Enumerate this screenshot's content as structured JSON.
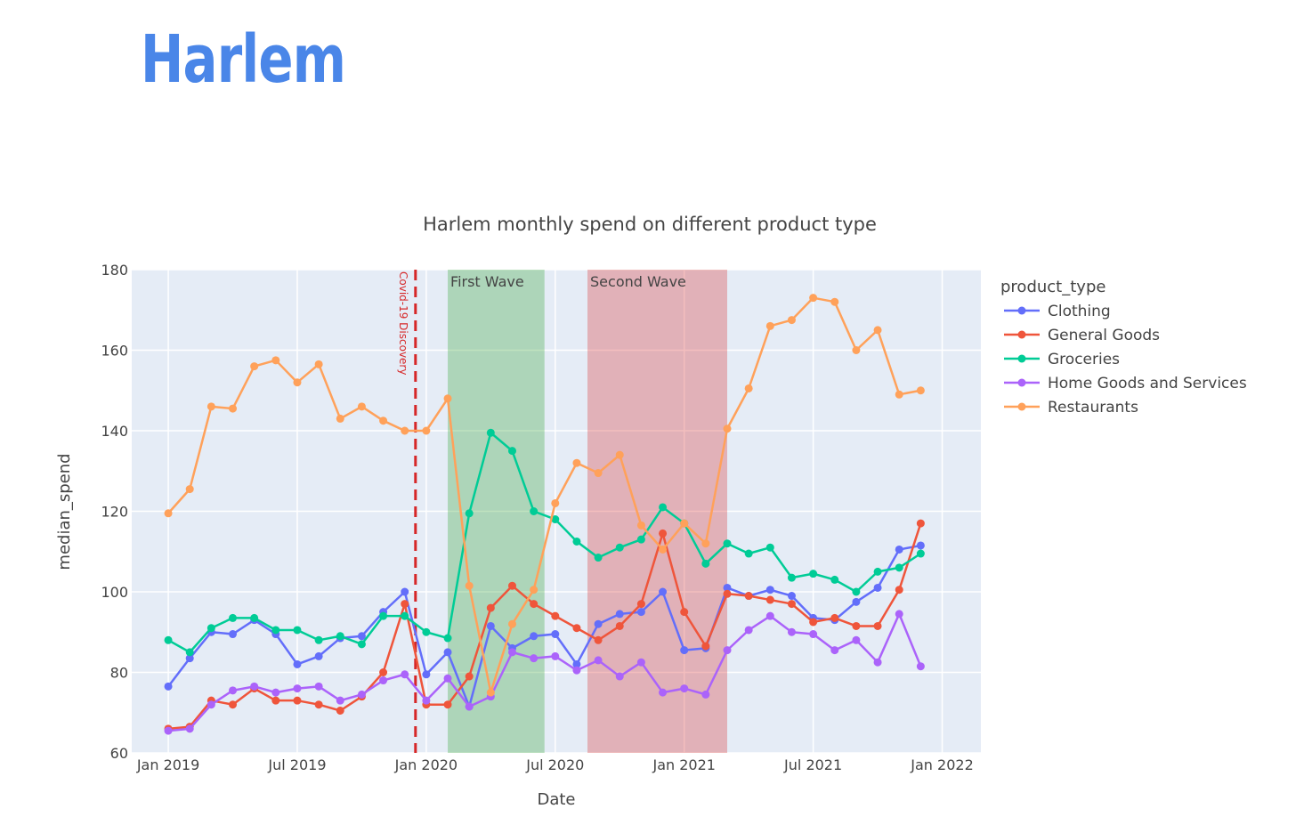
{
  "page": {
    "heading": "Harlem"
  },
  "colors": {
    "heading": "#4a86e8",
    "plot_bg": "#e5ecf6",
    "grid": "#ffffff",
    "text": "#444444",
    "first_wave": "#2ca02c",
    "second_wave": "#d62728",
    "covid_line": "#d62728"
  },
  "chart_data": {
    "type": "line",
    "title": "Harlem monthly spend on different product type",
    "xlabel": "Date",
    "ylabel": "median_spend",
    "ylim": [
      60,
      180
    ],
    "y_ticks": [
      60,
      80,
      100,
      120,
      140,
      160,
      180
    ],
    "x_range_months": [
      -1.7,
      37.8
    ],
    "x_ticks": [
      {
        "label": "Jan 2019",
        "month": 0
      },
      {
        "label": "Jul 2019",
        "month": 6
      },
      {
        "label": "Jan 2020",
        "month": 12
      },
      {
        "label": "Jul 2020",
        "month": 18
      },
      {
        "label": "Jan 2021",
        "month": 24
      },
      {
        "label": "Jul 2021",
        "month": 30
      },
      {
        "label": "Jan 2022",
        "month": 36
      }
    ],
    "x_months": [
      0,
      1,
      2,
      3,
      4,
      5,
      6,
      7,
      8,
      9,
      10,
      11,
      12,
      13,
      14,
      15,
      16,
      17,
      18,
      19,
      20,
      21,
      22,
      23,
      24,
      25,
      26,
      27,
      28,
      29,
      30,
      31,
      32,
      33,
      34,
      35
    ],
    "legend_title": "product_type",
    "series": [
      {
        "name": "Clothing",
        "color": "#636efa",
        "values": [
          76.5,
          83.5,
          90,
          89.5,
          93,
          89.5,
          82,
          84,
          88.5,
          89,
          95,
          100,
          79.5,
          85,
          71.5,
          91.5,
          86,
          89,
          89.5,
          82,
          92,
          94.5,
          95,
          100,
          85.5,
          86,
          101,
          99,
          100.5,
          99,
          93.5,
          93,
          97.5,
          101,
          110.5,
          111.5
        ]
      },
      {
        "name": "General Goods",
        "color": "#ef553b",
        "values": [
          66,
          66.5,
          73,
          72,
          76,
          73,
          73,
          72,
          70.5,
          74,
          80,
          97,
          72,
          72,
          79,
          96,
          101.5,
          97,
          94,
          91,
          88,
          91.5,
          97,
          114.5,
          95,
          86.5,
          99.5,
          99,
          98,
          97,
          92.5,
          93.5,
          91.5,
          91.5,
          100.5,
          117
        ]
      },
      {
        "name": "Groceries",
        "color": "#00cc96",
        "values": [
          88,
          85,
          91,
          93.5,
          93.5,
          90.5,
          90.5,
          88,
          89,
          87,
          94,
          94,
          90,
          88.5,
          119.5,
          139.5,
          135,
          120,
          118,
          112.5,
          108.5,
          111,
          113,
          121,
          117,
          107,
          112,
          109.5,
          111,
          103.5,
          104.5,
          103,
          100,
          105,
          106,
          109.5
        ]
      },
      {
        "name": "Home Goods and Services",
        "color": "#ab63fa",
        "values": [
          65.5,
          66,
          72,
          75.5,
          76.5,
          75,
          76,
          76.5,
          73,
          74.5,
          78,
          79.5,
          73,
          78.5,
          71.5,
          74,
          85,
          83.5,
          84,
          80.5,
          83,
          79,
          82.5,
          75,
          76,
          74.5,
          85.5,
          90.5,
          94,
          90,
          89.5,
          85.5,
          88,
          82.5,
          94.5,
          81.5
        ]
      },
      {
        "name": "Restaurants",
        "color": "#ffa15a",
        "values": [
          119.5,
          125.5,
          146,
          145.5,
          156,
          157.5,
          152,
          156.5,
          143,
          146,
          142.5,
          140,
          140,
          148,
          101.5,
          75,
          92,
          100.5,
          122,
          132,
          129.5,
          134,
          116.5,
          110.5,
          117,
          112,
          140.5,
          150.5,
          166,
          167.5,
          173,
          172,
          160,
          165,
          149,
          150
        ]
      }
    ],
    "shapes": [
      {
        "name": "first-wave",
        "label": "First Wave",
        "start_month": 13,
        "end_month": 17.5
      },
      {
        "name": "second-wave",
        "label": "Second Wave",
        "start_month": 19.5,
        "end_month": 26
      }
    ],
    "vline": {
      "label": "Covid-19 Discovery",
      "month": 11.5
    }
  }
}
